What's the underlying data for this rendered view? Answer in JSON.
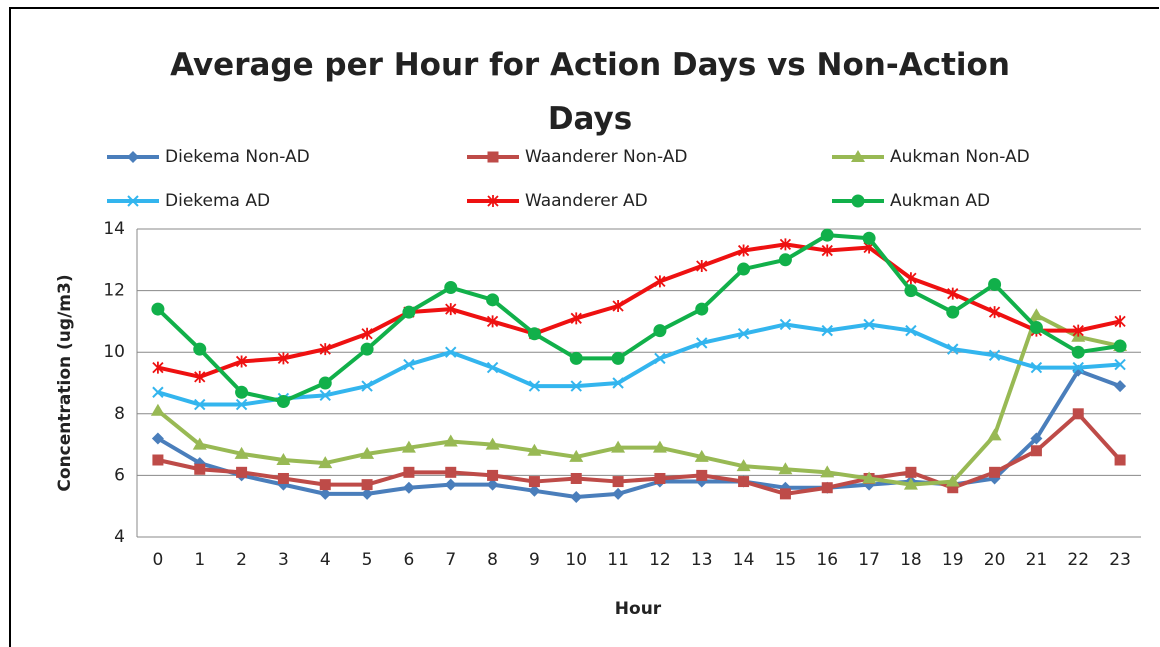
{
  "chart_data": {
    "type": "line",
    "title": "Average per Hour for Action Days vs Non-Action Days",
    "x_label": "Hour",
    "y_label": "Concentration (ug/m3)",
    "categories": [
      "0",
      "1",
      "2",
      "3",
      "4",
      "5",
      "6",
      "7",
      "8",
      "9",
      "10",
      "11",
      "12",
      "13",
      "14",
      "15",
      "16",
      "17",
      "18",
      "19",
      "20",
      "21",
      "22",
      "23"
    ],
    "ylim": [
      4,
      14
    ],
    "yticks": [
      4,
      6,
      8,
      10,
      12,
      14
    ],
    "grid": true,
    "series": [
      {
        "name": "Diekema Non-AD",
        "color": "#4a7ebb",
        "marker": "diamond",
        "values": [
          7.2,
          6.4,
          6.0,
          5.7,
          5.4,
          5.4,
          5.6,
          5.7,
          5.7,
          5.5,
          5.3,
          5.4,
          5.8,
          5.8,
          5.8,
          5.6,
          5.6,
          5.7,
          5.8,
          5.7,
          5.9,
          7.2,
          9.4,
          8.9
        ]
      },
      {
        "name": "Waanderer Non-AD",
        "color": "#be4b48",
        "marker": "square",
        "values": [
          6.5,
          6.2,
          6.1,
          5.9,
          5.7,
          5.7,
          6.1,
          6.1,
          6.0,
          5.8,
          5.9,
          5.8,
          5.9,
          6.0,
          5.8,
          5.4,
          5.6,
          5.9,
          6.1,
          5.6,
          6.1,
          6.8,
          8.0,
          6.5
        ]
      },
      {
        "name": "Aukman Non-AD",
        "color": "#98b954",
        "marker": "triangle",
        "values": [
          8.1,
          7.0,
          6.7,
          6.5,
          6.4,
          6.7,
          6.9,
          7.1,
          7.0,
          6.8,
          6.6,
          6.9,
          6.9,
          6.6,
          6.3,
          6.2,
          6.1,
          5.9,
          5.7,
          5.8,
          7.3,
          11.2,
          10.5,
          10.2
        ]
      },
      {
        "name": "Diekema AD",
        "color": "#33b5ee",
        "marker": "x",
        "values": [
          8.7,
          8.3,
          8.3,
          8.5,
          8.6,
          8.9,
          9.6,
          10.0,
          9.5,
          8.9,
          8.9,
          9.0,
          9.8,
          10.3,
          10.6,
          10.9,
          10.7,
          10.9,
          10.7,
          10.1,
          9.9,
          9.5,
          9.5,
          9.6
        ]
      },
      {
        "name": "Waanderer AD",
        "color": "#ee1111",
        "marker": "star",
        "values": [
          9.5,
          9.2,
          9.7,
          9.8,
          10.1,
          10.6,
          11.3,
          11.4,
          11.0,
          10.6,
          11.1,
          11.5,
          12.3,
          12.8,
          13.3,
          13.5,
          13.3,
          13.4,
          12.4,
          11.9,
          11.3,
          10.7,
          10.7,
          11.0
        ]
      },
      {
        "name": "Aukman AD",
        "color": "#11b04a",
        "marker": "circle",
        "values": [
          11.4,
          10.1,
          8.7,
          8.4,
          9.0,
          10.1,
          11.3,
          12.1,
          11.7,
          10.6,
          9.8,
          9.8,
          10.7,
          11.4,
          12.7,
          13.0,
          13.8,
          13.7,
          12.0,
          11.3,
          12.2,
          10.8,
          10.0,
          10.2
        ]
      }
    ]
  }
}
